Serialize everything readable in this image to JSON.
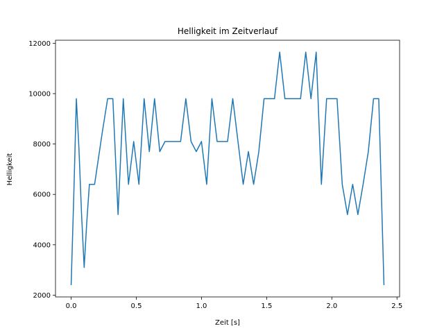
{
  "chart_data": {
    "type": "line",
    "title": "Helligkeit im Zeitverlauf",
    "xlabel": "Zeit [s]",
    "ylabel": "Helligkeit",
    "xlim": [
      -0.12,
      2.52
    ],
    "ylim": [
      1930,
      12120
    ],
    "xticks": [
      0.0,
      0.5,
      1.0,
      1.5,
      2.0,
      2.5
    ],
    "xtick_labels": [
      "0.0",
      "0.5",
      "1.0",
      "1.5",
      "2.0",
      "2.5"
    ],
    "yticks": [
      2000,
      4000,
      6000,
      8000,
      10000,
      12000
    ],
    "ytick_labels": [
      "2000",
      "4000",
      "6000",
      "8000",
      "10000",
      "12000"
    ],
    "grid": false,
    "line_color": "#1f77b4",
    "series": [
      {
        "x": [
          0.0,
          0.02,
          0.04,
          0.06,
          0.08,
          0.1,
          0.12,
          0.14,
          0.16,
          0.18,
          0.2,
          0.24,
          0.28,
          0.32,
          0.36,
          0.4,
          0.44,
          0.48,
          0.52,
          0.56,
          0.6,
          0.64,
          0.68,
          0.72,
          0.76,
          0.8,
          0.84,
          0.88,
          0.92,
          0.96,
          1.0,
          1.04,
          1.08,
          1.12,
          1.16,
          1.2,
          1.24,
          1.28,
          1.32,
          1.36,
          1.4,
          1.44,
          1.48,
          1.52,
          1.56,
          1.6,
          1.64,
          1.68,
          1.72,
          1.76,
          1.8,
          1.84,
          1.88,
          1.92,
          1.96,
          2.0,
          2.04,
          2.08,
          2.12,
          2.16,
          2.2,
          2.24,
          2.28,
          2.32,
          2.36,
          2.4
        ],
        "y": [
          2400,
          5900,
          9800,
          7800,
          5200,
          3100,
          4900,
          6400,
          6400,
          6400,
          7100,
          8500,
          9800,
          9800,
          5200,
          9800,
          6400,
          8100,
          6400,
          9800,
          7700,
          9800,
          7700,
          8100,
          8100,
          8100,
          8100,
          9800,
          8100,
          7700,
          8100,
          6400,
          9800,
          8100,
          8100,
          8100,
          9800,
          8100,
          6400,
          7700,
          6400,
          7700,
          9800,
          9800,
          9800,
          11650,
          9800,
          9800,
          9800,
          9800,
          11650,
          9800,
          11650,
          6400,
          9800,
          9800,
          9800,
          6400,
          5200,
          6400,
          5200,
          6400,
          7700,
          9800,
          9800,
          2400
        ]
      }
    ]
  }
}
